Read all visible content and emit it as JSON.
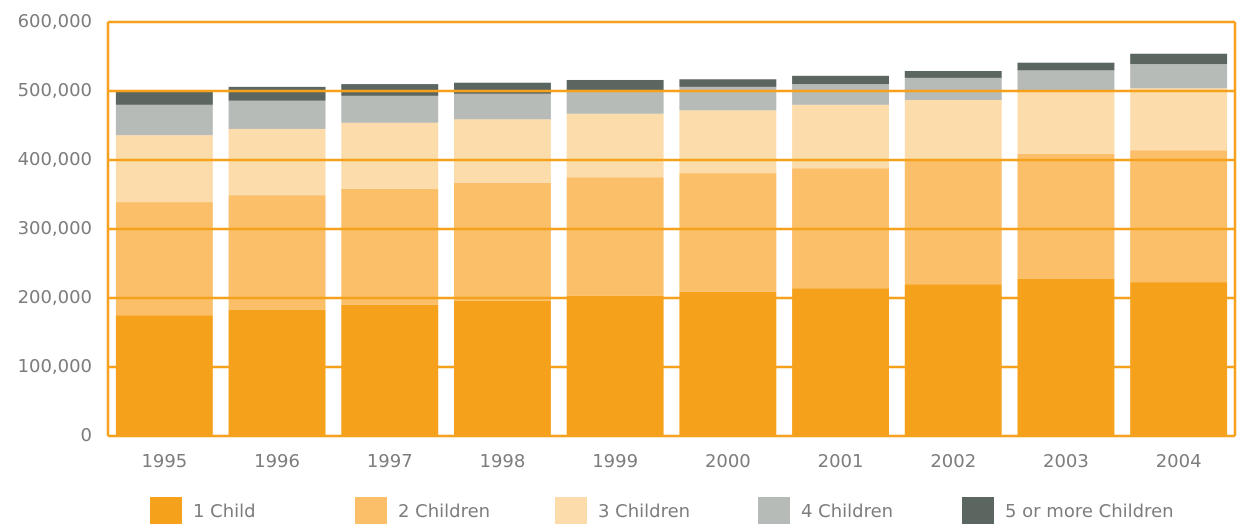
{
  "chart_data": {
    "type": "stacked_bar",
    "categories": [
      "1995",
      "1996",
      "1997",
      "1998",
      "1999",
      "2000",
      "2001",
      "2002",
      "2003",
      "2004"
    ],
    "series": [
      {
        "name": "1 Child",
        "color": "#f5a11c",
        "values": [
          175000,
          183000,
          190000,
          196000,
          203000,
          209000,
          214000,
          220000,
          228000,
          223000
        ]
      },
      {
        "name": "2 Children",
        "color": "#fbbe69",
        "values": [
          164000,
          166000,
          168000,
          171000,
          172000,
          172000,
          174000,
          179000,
          181000,
          191000
        ]
      },
      {
        "name": "3 Children",
        "color": "#fddcac",
        "values": [
          97000,
          96000,
          96000,
          92000,
          92000,
          91000,
          92000,
          88000,
          91000,
          90000
        ]
      },
      {
        "name": "4 Children",
        "color": "#b6bbb7",
        "values": [
          44000,
          41000,
          39000,
          37000,
          34000,
          34000,
          30000,
          32000,
          30000,
          35000
        ]
      },
      {
        "name": "5 or more Children",
        "color": "#5c6661",
        "values": [
          19000,
          20000,
          17000,
          16000,
          15000,
          11000,
          12000,
          10000,
          11000,
          15000
        ]
      }
    ],
    "ylim": [
      0,
      600000
    ],
    "yticks": [
      0,
      {
        "value": 100000,
        "label": "100,000"
      },
      {
        "value": 200000,
        "label": "200,000"
      },
      {
        "value": 300000,
        "label": "300,000"
      },
      {
        "value": 400000,
        "label": "400,000"
      },
      {
        "value": 500000,
        "label": "500,000"
      },
      {
        "value": 600000,
        "label": "600,000"
      }
    ],
    "grid": true,
    "grid_color": "#f5a11c",
    "legend": "bottom"
  }
}
